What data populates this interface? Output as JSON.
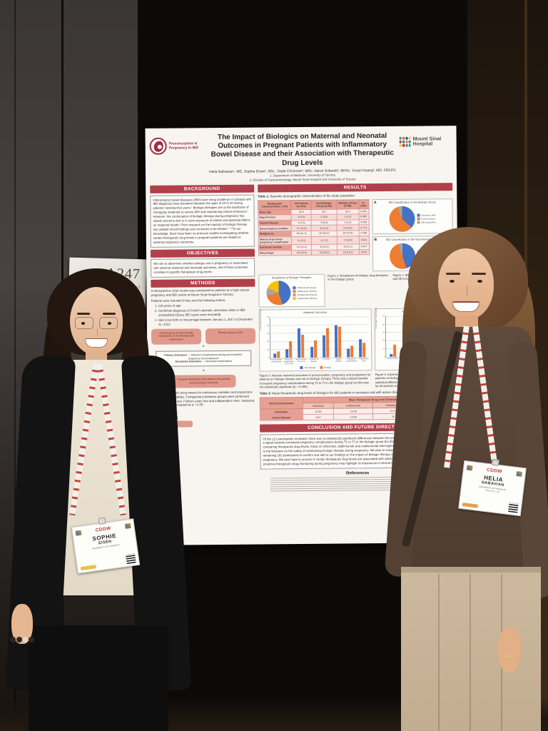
{
  "sign": {
    "code": "A247",
    "frag1": "…owel",
    "frag2": "…ams"
  },
  "badges": {
    "sophie": {
      "conference": "CDDW",
      "first": "SOPHIE",
      "last": "EISEN",
      "org": "UNIVERSITY OF TORONTO"
    },
    "helia": {
      "conference": "CDDW",
      "first": "HELIA",
      "last": "NABAVIAN",
      "org": "UNIVERSITY OF TORONTO",
      "city": "TORONTO, ON"
    }
  },
  "poster": {
    "logo_left_line1": "Preconception &",
    "logo_left_line2": "Pregnancy in IBD",
    "logo_right_line1": "Mount Sinai",
    "logo_right_line2": "Hospital",
    "title": "The Impact of Biologics on Maternal and Neonatal Outcomes in Pregnant Patients with Inflammatory Bowel Disease and their Association with Therapeutic Drug Levels",
    "authors": "Helia Nabavian¹, MD, Sophie Eisen¹, BSc , Katie O'Connor², MSc, Varun Srikanth², BHSc, Vivian Huang², MD, FRCPC",
    "affiliation1": "1. Department of Medicine, University of Toronto",
    "affiliation2": "2. Division of Gastroenterology, Mount Sinai Hospital and University of Toronto",
    "background": {
      "heading": "BACKGROUND",
      "text": "Inflammatory bowel diseases (IBD) have rising incidence in Canada with IBD diagnosis most prevalent between the ages of 20 to 30 during patients' reproductive years.¹ Biologic therapies are at the backbone of managing moderate to severe IBD and maintaining clinical remission.² However, the continuation of biologic therapy during pregnancy has raised concerns due to in utero exposure of infants and potential effects on maternal health.³ Prior research on the impacts of biologic therapy has yielded mixed findings and continues to be limited.⁴⁻⁶ To our knowledge, there have been no previous studies investigating whether certain therapeutic drug levels in pregnant patients are related to adverse pregnancy outcomes."
    },
    "objectives": {
      "heading": "OBJECTIVES",
      "text": "We aim to determine whether biologic use in pregnancy is associated with adverse maternal and neonatal outcomes, and if those outcomes correlate to specific therapeutic drug levels."
    },
    "methods": {
      "heading": "METHODS",
      "intro": "A retrospective chart review was conducted for patients at a high-volume pregnancy and IBD centre at Mount Sinai Hospital in Toronto.",
      "criteria_intro": "Patients were included if they met the following criteria:",
      "criteria": [
        "≥18 years of age",
        "Confirmed diagnosis of Crohn's disease, ulcerative colitis or IBD unclassified [Query IBD cases were excluded]",
        "Had a live birth or miscarriage between January 1, 2017 to December 31, 2022"
      ],
      "flow_box1": "Control group (n=55): No IBD medications or non-biologic IBD medications",
      "flow_box2": "Biologic group (n=66)",
      "flow_primary_label": "Primary Outcomes",
      "flow_primary_text": "→ Maternal complications during preconception, pregnancy and postpartum",
      "flow_secondary_label": "Secondary Outcomes",
      "flow_secondary_text": "→ Neonatal complications",
      "flow_box4": "Compare therapeutic drug levels to the primary and secondary outcomes",
      "stats_text": "Data was described using means for continuous variables and proportions for categorical variables. Comparisons between groups were performed using chi-squared test, Fisher's exact test and independent t-test. Statistical significance was accepted at p < 0.05."
    },
    "contact_line1": "University of Toronto",
    "contact_email": "…@mail.utoronto.ca",
    "results": {
      "heading": "RESULTS",
      "table1": {
        "title_label": "Table 1:",
        "title": "Baseline demographic characteristics of the study population",
        "columns": [
          "Background Characteristics, n (%)",
          "All Patients (n=121)",
          "Non-Biologic Group (n=55)",
          "Biologic Group (n=66)",
          "p-value"
        ],
        "rows": [
          [
            "Mean Age",
            "30.6",
            "30.7",
            "30.4",
            "0.554"
          ],
          [
            "Hypertension",
            "3 (2.5)",
            "2 (3.6)",
            "1 (1.5)",
            "0.465"
          ],
          [
            "Thyroid disease",
            "4 (3.3)",
            "3 (5.5)",
            "1 (1.5)",
            "0.258"
          ],
          [
            "Gynecological condition",
            "17 (14.0)",
            "8 (14.5)",
            "9 (13.6)",
            "0.774"
          ],
          [
            "Multiparous",
            "50 (41.3)",
            "25 (45.5)",
            "25 (37.9)",
            "0.390"
          ],
          [
            "History of previous pregnancy complication",
            "11 (9.1)",
            "4 (7.3)",
            "7 (10.6)",
            "0.542"
          ],
          [
            "Caesarean section",
            "16 (13.2)",
            "8 (14.5)",
            "8 (12.1)",
            "0.457"
          ],
          [
            "Miscarriage",
            "20 (16.5)",
            "10 (18.2)",
            "10 (15.2)",
            "0.457"
          ]
        ]
      },
      "pieA": {
        "panel_label": "A",
        "title": "IBD Classification in the Biologic Group",
        "legend": [
          "Ulcerative colitis",
          "Crohn's disease",
          "IBD unclassified"
        ],
        "values": [
          37,
          58,
          5
        ],
        "colors": [
          "#4472c4",
          "#ed7d31",
          "#a5a5a5"
        ]
      },
      "pieB": {
        "panel_label": "B",
        "title": "IBD Classification in the Non-Biologic Group",
        "legend": [
          "Ulcerative colitis",
          "Crohn's disease",
          "IBD unclassified"
        ],
        "values": [
          45,
          50,
          5
        ],
        "colors": [
          "#4472c4",
          "#ed7d31",
          "#a5a5a5"
        ]
      },
      "fig1_pie": {
        "title": "Breakdown of Biologic Therapies",
        "legend": [
          "Infliximab (Remicade)",
          "Adalimumab (Humira)",
          "Vedolizumab (Entyvio)",
          "Ustekinumab (Stelara)"
        ],
        "values": [
          45,
          27,
          10,
          18
        ],
        "colors": [
          "#4472c4",
          "#ed7d31",
          "#a5a5a5",
          "#ffc000"
        ]
      },
      "fig1_caption": "Figure 1: Breakdown of biologic drug therapies in the biologic group",
      "fig2_caption": "Figure 2: IBD classification in the (A) biologic and (B) non-biologic groups",
      "maternal_chart": {
        "type": "bar",
        "title": "Maternal Outcomes",
        "ylabel": "Percentage of participants",
        "ylim": [
          0,
          50
        ],
        "categories": [
          "Preconception complications",
          "Pregnancy complications (T1 to T3)",
          "Mental illness (T1 to T3)",
          "Gestational diabetes",
          "C-section",
          "Vaginal delivery",
          "Postpartum complications",
          "Postpartum flare"
        ],
        "series": [
          {
            "name": "Non-biologic",
            "color": "#4472c4",
            "values": [
              5,
              11,
              36,
              13,
              27,
              40,
              11,
              22
            ]
          },
          {
            "name": "Biologic",
            "color": "#ed7d31",
            "values": [
              8,
              20,
              28,
              21,
              36,
              38,
              14,
              18
            ]
          }
        ]
      },
      "neonatal_chart": {
        "type": "bar",
        "title": "Neonatal Outcomes",
        "ylabel": "Percentage of participants",
        "ylim": [
          0,
          50
        ],
        "categories": [
          "Preterm birth",
          "SGA",
          "LGA",
          "NICU admission",
          "Neonatal infection"
        ],
        "series": [
          {
            "name": "Non-biologic",
            "color": "#4472c4",
            "values": [
              4,
              2,
              12,
              9,
              3
            ]
          },
          {
            "name": "Biologic",
            "color": "#ed7d31",
            "values": [
              15,
              5,
              14,
              46,
              27
            ]
          }
        ]
      },
      "fig3_caption": "Figure 3: Adverse maternal outcomes in preconception, pregnancy and postpartum for patients on biologic therapy and not on biologic therapy. There was a signal towards increased pregnancy complications during T1 to T3 in the biologic group but this was not statistically significant (p = 0.086).",
      "fig4_caption": "Figure 4: Adverse neonatal outcomes for infants born to patients on biologic therapy and not on biologic therapy. No statistical differences were detected between the two groups for all adverse outcomes shown (p > 0.05).",
      "table2": {
        "title_label": "Table 2:",
        "title": "Mean therapeutic drug levels of biologics for IBD patients in remission and with active clinical disease during pregnancy",
        "corner_header": "Clinical Assessment",
        "group_header": "Mean Therapeutic Drug Level (Trimesters 1 to 3)",
        "columns": [
          "Infliximab",
          "Adalimumab",
          "Vedolizumab",
          "Ustekinumab"
        ],
        "rows": [
          [
            "Remission",
            "12.56",
            "16.20",
            "13.23",
            "4.62"
          ],
          [
            "Active Disease",
            "8.57",
            "13.09",
            "26",
            "3.34"
          ]
        ]
      }
    },
    "conclusion": {
      "heading": "CONCLUSION AND FUTURE DIRECTIONS",
      "text": "Of the 121 participants reviewed, there was no statistically significant differences between the primary and secondary outcomes. There was a signal towards increased pregnancy complications during T1 to T3 in the biologic group but this was not statistically significant. When comparing therapeutic drug levels, those on infliximab, adalimumab and ustekinumab had higher mean levels in remission. This study adds to the literature on the safety of maintaining biologic therapy during pregnancy. We plan to complete retrospective chart review for the remaining 182 participants to confirm and add to our findings on the impact of biologic therapy on maternal and neonatal health during pregnancy. We also hope to uncover if certain therapeutic drug levels are associated with adverse pregnancy outcomes. The data on proactive therapeutic drug monitoring during pregnancy may highlight its importance in clinical decision-making algorithms."
    },
    "references_heading": "References"
  }
}
